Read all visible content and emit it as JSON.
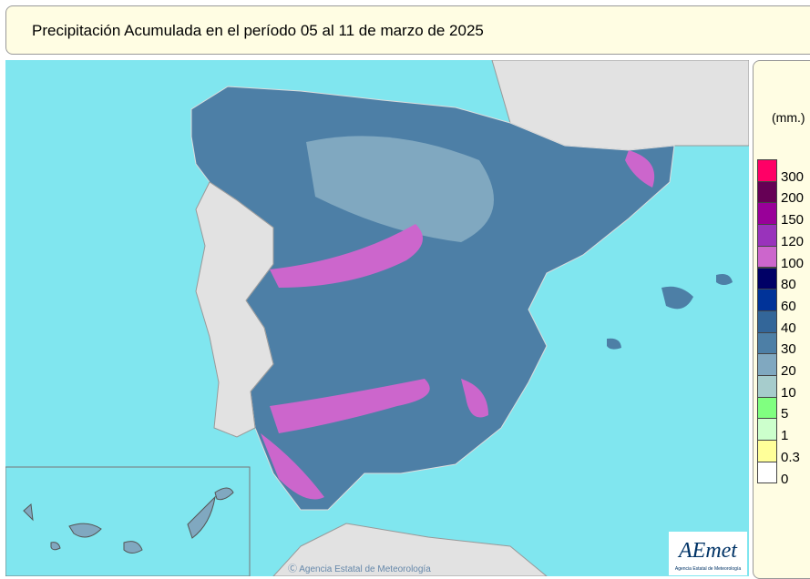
{
  "header": {
    "title": "Precipitación Acumulada en el período 05 al 11 de marzo de 2025"
  },
  "legend": {
    "unit": "(mm.)",
    "items": [
      {
        "label": "300",
        "color": "#ff0066"
      },
      {
        "label": "200",
        "color": "#660055"
      },
      {
        "label": "150",
        "color": "#990099"
      },
      {
        "label": "120",
        "color": "#9933bb"
      },
      {
        "label": "100",
        "color": "#cc66cc"
      },
      {
        "label": "80",
        "color": "#000066"
      },
      {
        "label": "60",
        "color": "#003399"
      },
      {
        "label": "40",
        "color": "#336699"
      },
      {
        "label": "30",
        "color": "#4d7fa6"
      },
      {
        "label": "20",
        "color": "#80a8c0"
      },
      {
        "label": "10",
        "color": "#a6cccc"
      },
      {
        "label": "5",
        "color": "#80ff80"
      },
      {
        "label": "1",
        "color": "#ccffcc"
      },
      {
        "label": "0.3",
        "color": "#ffff99"
      },
      {
        "label": "0",
        "color": "#ffffff"
      }
    ]
  },
  "map": {
    "credit": "Ⓒ Agencia Estatal de Meteorología",
    "logo": "AEmet",
    "logo_subtitle": "Agencia Estatal de Meteorología"
  }
}
